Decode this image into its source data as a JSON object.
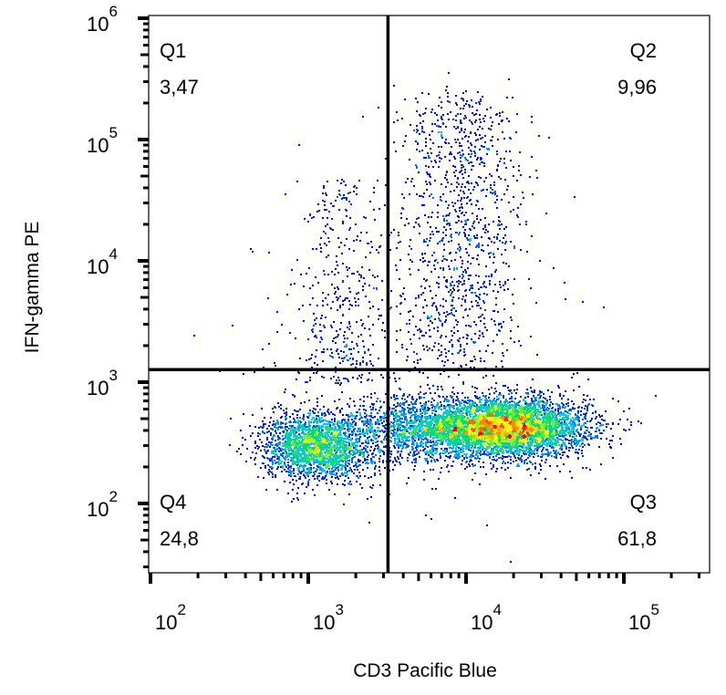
{
  "chart_data": {
    "type": "scatter",
    "subtype": "flow-cytometry density dot plot",
    "xlabel": "CD3 Pacific Blue",
    "ylabel": "IFN-gamma PE",
    "xscale": "log",
    "yscale": "log",
    "xlim": [
      100,
      350000
    ],
    "ylim": [
      27,
      1050000
    ],
    "x_ticks": [
      {
        "base": "10",
        "exp": "2",
        "value": 100
      },
      {
        "base": "10",
        "exp": "3",
        "value": 1000
      },
      {
        "base": "10",
        "exp": "4",
        "value": 10000
      },
      {
        "base": "10",
        "exp": "5",
        "value": 100000
      }
    ],
    "y_ticks": [
      {
        "base": "10",
        "exp": "2",
        "value": 100
      },
      {
        "base": "10",
        "exp": "3",
        "value": 1000
      },
      {
        "base": "10",
        "exp": "4",
        "value": 10000
      },
      {
        "base": "10",
        "exp": "5",
        "value": 100000
      },
      {
        "base": "10",
        "exp": "6",
        "value": 1000000
      }
    ],
    "gate": {
      "x": 3200,
      "y": 1270
    },
    "quadrants": [
      {
        "name": "Q1",
        "value": "3,47",
        "position": "top-left"
      },
      {
        "name": "Q2",
        "value": "9,96",
        "position": "top-right"
      },
      {
        "name": "Q3",
        "value": "61,8",
        "position": "bottom-right"
      },
      {
        "name": "Q4",
        "value": "24,8",
        "position": "bottom-left"
      }
    ],
    "color_scale": [
      "#0000ff",
      "#00c8ff",
      "#00e060",
      "#ffff00",
      "#ff0000"
    ],
    "grid": false
  }
}
